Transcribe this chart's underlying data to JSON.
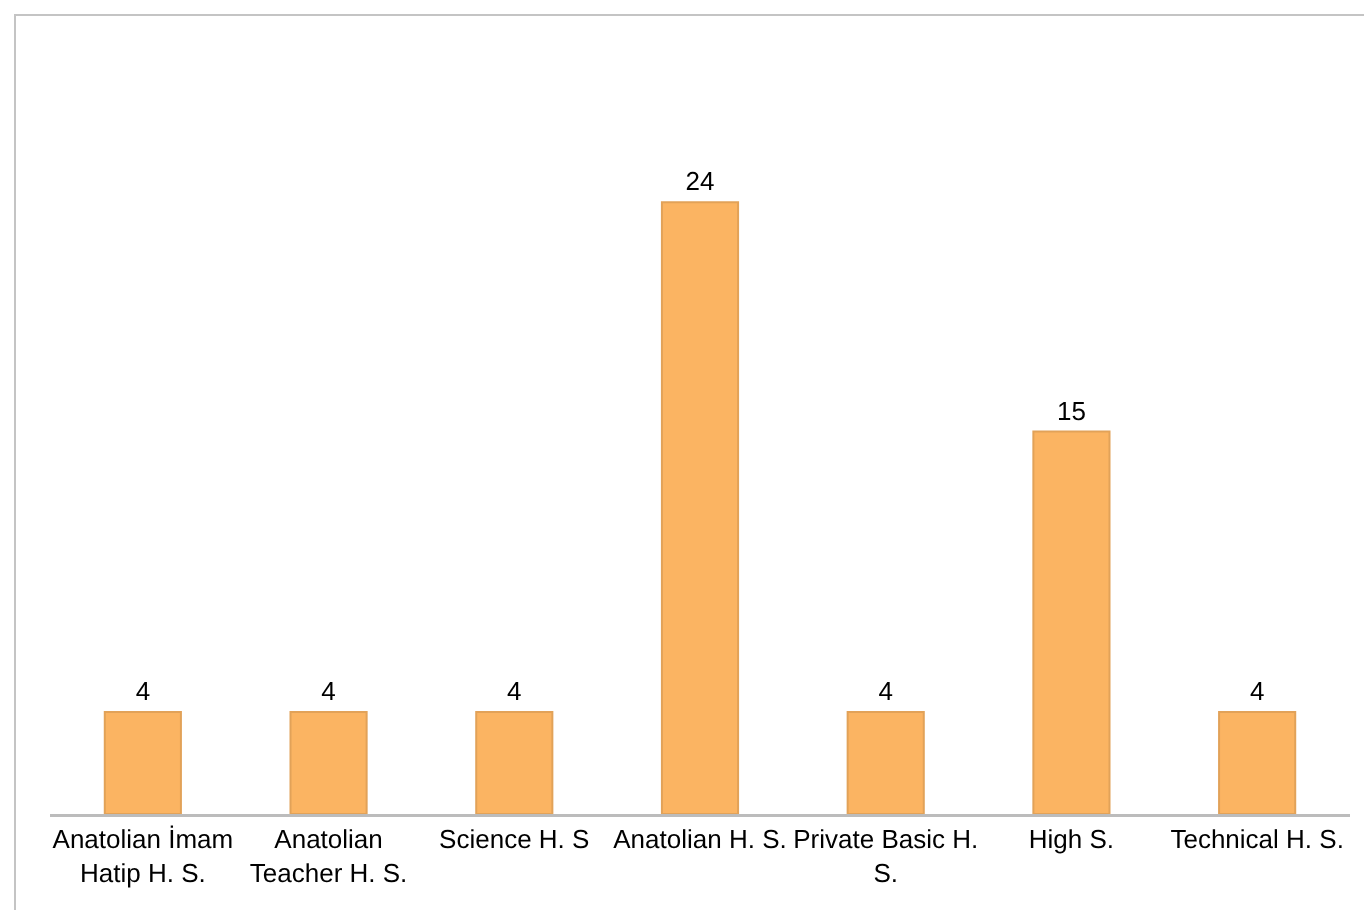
{
  "chart_data": {
    "type": "bar",
    "categories": [
      "Anatolian İmam Hatip H. S.",
      "Anatolian Teacher H. S.",
      "Science H. S",
      "Anatolian H. S.",
      "Private Basic H. S.",
      "High S.",
      "Technical H. S."
    ],
    "values": [
      4,
      4,
      4,
      24,
      4,
      15,
      4
    ],
    "color": "#fbb462",
    "data_labels": true,
    "tick_labels": "x"
  }
}
